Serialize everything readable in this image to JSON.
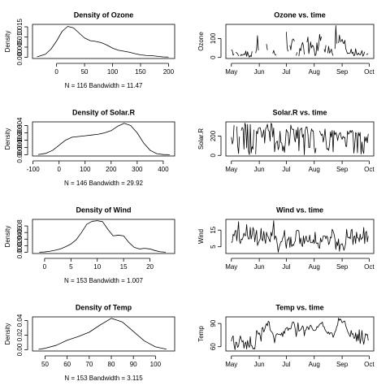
{
  "chart_data": [
    {
      "type": "line",
      "title": "Density of Ozone",
      "xlabel": "N = 116   Bandwidth = 11.47",
      "ylabel": "Density",
      "x": [
        -35,
        -20,
        -10,
        0,
        10,
        20,
        30,
        40,
        50,
        60,
        70,
        80,
        90,
        100,
        110,
        120,
        130,
        140,
        150,
        160,
        170,
        180,
        190,
        200
      ],
      "values": [
        0.0002,
        0.0015,
        0.004,
        0.008,
        0.0128,
        0.0152,
        0.0145,
        0.012,
        0.0095,
        0.0082,
        0.0078,
        0.0072,
        0.006,
        0.0045,
        0.0035,
        0.003,
        0.0025,
        0.0018,
        0.0012,
        0.0009,
        0.0008,
        0.0005,
        0.0002,
        0.0001
      ],
      "xlim": [
        -43,
        211
      ],
      "xticks": [
        0,
        50,
        100,
        150,
        200
      ],
      "ylim": [
        -0.0006,
        0.0162
      ],
      "yticks": [
        {
          "value": 0,
          "label": "0.000"
        },
        {
          "value": 0.005,
          "label": "0.005"
        },
        {
          "value": 0.01,
          "label": "0.010"
        },
        {
          "value": 0.015,
          "label": "0.015"
        }
      ]
    },
    {
      "type": "line",
      "title": "Ozone vs. time",
      "ylabel": "Ozone",
      "values": [
        41,
        36,
        12,
        18,
        null,
        28,
        23,
        19,
        8,
        null,
        7,
        16,
        11,
        14,
        18,
        14,
        34,
        6,
        30,
        11,
        1,
        11,
        4,
        32,
        null,
        null,
        null,
        23,
        45,
        115,
        37,
        null,
        null,
        null,
        null,
        null,
        null,
        29,
        null,
        71,
        39,
        null,
        null,
        23,
        null,
        null,
        21,
        37,
        20,
        12,
        13,
        null,
        null,
        null,
        null,
        null,
        null,
        null,
        null,
        null,
        null,
        135,
        49,
        32,
        null,
        64,
        40,
        77,
        97,
        97,
        85,
        null,
        10,
        27,
        null,
        7,
        48,
        35,
        61,
        79,
        63,
        16,
        null,
        null,
        80,
        108,
        20,
        52,
        82,
        50,
        64,
        59,
        39,
        9,
        16,
        78,
        35,
        66,
        122,
        89,
        110,
        null,
        null,
        44,
        28,
        65,
        null,
        22,
        59,
        23,
        31,
        44,
        21,
        9,
        null,
        45,
        168,
        73,
        null,
        76,
        118,
        84,
        85,
        96,
        78,
        73,
        91,
        47,
        32,
        20,
        23,
        21,
        24,
        44,
        21,
        28,
        9,
        13,
        46,
        18,
        13,
        24,
        16,
        13,
        23,
        36,
        7,
        14,
        30,
        null,
        14,
        18,
        20
      ],
      "xlim": [
        -6.1,
        158.1
      ],
      "xticks": [
        {
          "value": 0,
          "label": "May"
        },
        {
          "value": 31,
          "label": "Jun"
        },
        {
          "value": 61,
          "label": "Jul"
        },
        {
          "value": 92,
          "label": "Aug"
        },
        {
          "value": 123,
          "label": "Sep"
        },
        {
          "value": 153,
          "label": "Oct"
        }
      ],
      "ylim": [
        -5.7,
        174.7
      ],
      "yticks": [
        0,
        100
      ]
    },
    {
      "type": "line",
      "title": "Density of Solar.R",
      "xlabel": "N = 146   Bandwidth = 29.92",
      "ylabel": "Density",
      "x": [
        -80,
        -50,
        -25,
        0,
        25,
        50,
        75,
        100,
        125,
        150,
        175,
        200,
        225,
        250,
        275,
        300,
        325,
        350,
        375,
        400,
        425
      ],
      "values": [
        2e-05,
        0.0002,
        0.0006,
        0.0013,
        0.002,
        0.0024,
        0.0025,
        0.0026,
        0.0027,
        0.0028,
        0.003,
        0.0033,
        0.0039,
        0.0043,
        0.004,
        0.003,
        0.0016,
        0.0006,
        0.00015,
        3e-05,
        1e-05
      ],
      "xlim": [
        -102,
        444
      ],
      "xticks": [
        -100,
        0,
        100,
        200,
        300,
        400
      ],
      "ylim": [
        -0.00017,
        0.0045
      ],
      "yticks": [
        {
          "value": 0,
          "label": "0.000"
        },
        {
          "value": 0.001,
          "label": "0.001"
        },
        {
          "value": 0.002,
          "label": "0.002"
        },
        {
          "value": 0.003,
          "label": "0.003"
        },
        {
          "value": 0.004,
          "label": "0.004"
        }
      ]
    },
    {
      "type": "line",
      "title": "Solar.R vs. time",
      "ylabel": "Solar.R",
      "values": [
        190,
        118,
        149,
        313,
        null,
        null,
        299,
        99,
        19,
        194,
        null,
        256,
        290,
        274,
        65,
        334,
        307,
        78,
        322,
        44,
        8,
        320,
        25,
        92,
        66,
        266,
        null,
        13,
        252,
        223,
        279,
        286,
        287,
        242,
        186,
        220,
        264,
        127,
        273,
        291,
        323,
        259,
        250,
        148,
        332,
        322,
        191,
        284,
        37,
        120,
        137,
        150,
        59,
        91,
        250,
        135,
        127,
        47,
        98,
        31,
        138,
        269,
        248,
        236,
        101,
        175,
        314,
        276,
        267,
        272,
        175,
        139,
        264,
        175,
        291,
        48,
        260,
        274,
        285,
        187,
        220,
        7,
        258,
        295,
        294,
        223,
        81,
        82,
        213,
        275,
        253,
        254,
        83,
        24,
        77,
        null,
        null,
        null,
        255,
        229,
        207,
        222,
        137,
        192,
        273,
        157,
        64,
        71,
        51,
        115,
        244,
        190,
        259,
        36,
        255,
        212,
        238,
        215,
        153,
        203,
        225,
        237,
        188,
        167,
        197,
        183,
        189,
        95,
        92,
        252,
        220,
        230,
        259,
        236,
        259,
        238,
        24,
        112,
        237,
        224,
        27,
        238,
        201,
        238,
        14,
        139,
        49,
        20,
        193,
        145,
        191,
        131,
        223
      ],
      "xlim": [
        -6.1,
        158.1
      ],
      "xticks": [
        {
          "value": 0,
          "label": "May"
        },
        {
          "value": 31,
          "label": "Jun"
        },
        {
          "value": 61,
          "label": "Jul"
        },
        {
          "value": 92,
          "label": "Aug"
        },
        {
          "value": 123,
          "label": "Sep"
        },
        {
          "value": 153,
          "label": "Oct"
        }
      ],
      "ylim": [
        -6,
        347
      ],
      "yticks": [
        0,
        200
      ]
    },
    {
      "type": "line",
      "title": "Density of Wind",
      "xlabel": "N = 153   Bandwidth = 1.007",
      "ylabel": "Density",
      "x": [
        -1,
        0,
        1,
        2,
        3,
        4,
        5,
        6,
        7,
        8,
        9,
        10,
        11,
        12,
        13,
        14,
        15,
        16,
        17,
        18,
        19,
        20,
        21,
        22,
        23
      ],
      "values": [
        0.0003,
        0.001,
        0.003,
        0.006,
        0.01,
        0.017,
        0.025,
        0.038,
        0.06,
        0.085,
        0.094,
        0.096,
        0.093,
        0.07,
        0.05,
        0.052,
        0.05,
        0.03,
        0.015,
        0.01,
        0.012,
        0.01,
        0.005,
        0.0015,
        0.0003
      ],
      "xlim": [
        -2.3,
        24.7
      ],
      "xticks": [
        0,
        5,
        10,
        15,
        20
      ],
      "ylim": [
        -0.0038,
        0.1
      ],
      "yticks": [
        {
          "value": 0,
          "label": "0.00"
        },
        {
          "value": 0.02,
          "label": "0.02"
        },
        {
          "value": 0.04,
          "label": "0.04"
        },
        {
          "value": 0.06,
          "label": "0.06"
        },
        {
          "value": 0.08,
          "label": "0.08"
        }
      ]
    },
    {
      "type": "line",
      "title": "Wind vs. time",
      "ylabel": "Wind",
      "values": [
        7.4,
        8.0,
        12.6,
        11.5,
        14.3,
        14.9,
        8.6,
        13.8,
        20.1,
        8.6,
        6.9,
        9.7,
        9.2,
        10.9,
        13.2,
        11.5,
        12.0,
        18.4,
        11.5,
        9.7,
        9.7,
        16.6,
        9.7,
        12.0,
        16.6,
        14.9,
        8.0,
        12.0,
        14.9,
        5.7,
        7.4,
        8.6,
        9.7,
        16.1,
        9.2,
        8.6,
        14.3,
        9.7,
        6.9,
        13.8,
        11.5,
        10.9,
        9.2,
        8.0,
        13.8,
        11.5,
        14.9,
        20.7,
        9.2,
        11.5,
        10.3,
        6.3,
        1.7,
        4.6,
        6.3,
        8.0,
        8.0,
        10.3,
        11.5,
        14.9,
        8.0,
        4.1,
        9.2,
        9.2,
        10.9,
        4.6,
        10.9,
        5.1,
        6.3,
        5.7,
        7.4,
        8.6,
        14.3,
        14.9,
        14.9,
        14.3,
        6.9,
        10.3,
        6.3,
        5.1,
        11.5,
        6.9,
        9.7,
        11.5,
        8.6,
        8.0,
        8.6,
        12.0,
        7.4,
        7.4,
        7.4,
        9.2,
        6.9,
        13.8,
        7.4,
        6.9,
        7.4,
        4.6,
        4.0,
        10.3,
        8.0,
        8.6,
        11.5,
        11.5,
        11.5,
        9.7,
        11.5,
        10.3,
        6.3,
        7.4,
        10.9,
        10.3,
        15.5,
        14.3,
        12.6,
        9.7,
        3.4,
        8.0,
        5.7,
        9.7,
        2.3,
        6.3,
        6.3,
        6.9,
        5.1,
        2.8,
        4.6,
        7.4,
        15.5,
        10.9,
        10.3,
        10.9,
        9.7,
        14.9,
        15.5,
        6.3,
        10.9,
        11.5,
        6.9,
        13.8,
        10.3,
        10.3,
        8.0,
        12.6,
        9.2,
        10.3,
        10.3,
        16.6,
        6.9,
        13.2,
        14.3,
        8.0,
        11.5
      ],
      "xlim": [
        -6.1,
        158.1
      ],
      "xticks": [
        {
          "value": 0,
          "label": "May"
        },
        {
          "value": 31,
          "label": "Jun"
        },
        {
          "value": 61,
          "label": "Jul"
        },
        {
          "value": 92,
          "label": "Aug"
        },
        {
          "value": 123,
          "label": "Sep"
        },
        {
          "value": 153,
          "label": "Oct"
        }
      ],
      "ylim": [
        0.94,
        21.46
      ],
      "yticks": [
        5,
        15
      ]
    },
    {
      "type": "line",
      "title": "Density of Temp",
      "xlabel": "N = 153   Bandwidth = 3.115",
      "ylabel": "Density",
      "x": [
        47,
        50,
        55,
        60,
        65,
        70,
        75,
        80,
        85,
        90,
        95,
        100,
        105
      ],
      "values": [
        0.0005,
        0.002,
        0.006,
        0.013,
        0.018,
        0.024,
        0.034,
        0.043,
        0.038,
        0.025,
        0.012,
        0.004,
        0.0008
      ],
      "xlim": [
        44.3,
        108.7
      ],
      "xticks": [
        50,
        60,
        70,
        80,
        90,
        100
      ],
      "ylim": [
        -0.0017,
        0.045
      ],
      "yticks": [
        {
          "value": 0,
          "label": "0.00"
        },
        {
          "value": 0.02,
          "label": "0.02"
        },
        {
          "value": 0.04,
          "label": "0.04"
        }
      ]
    },
    {
      "type": "line",
      "title": "Temp vs. time",
      "ylabel": "Temp",
      "values": [
        67,
        72,
        74,
        62,
        56,
        66,
        65,
        59,
        61,
        69,
        74,
        69,
        66,
        68,
        58,
        64,
        66,
        57,
        68,
        62,
        59,
        73,
        61,
        61,
        57,
        58,
        57,
        67,
        81,
        79,
        76,
        78,
        74,
        67,
        84,
        85,
        79,
        82,
        87,
        90,
        87,
        93,
        92,
        82,
        80,
        79,
        77,
        72,
        65,
        73,
        76,
        77,
        76,
        76,
        76,
        75,
        78,
        73,
        80,
        77,
        83,
        84,
        85,
        81,
        84,
        83,
        83,
        88,
        92,
        92,
        89,
        82,
        73,
        81,
        91,
        80,
        81,
        82,
        84,
        87,
        85,
        74,
        81,
        82,
        86,
        85,
        82,
        86,
        88,
        86,
        83,
        81,
        81,
        81,
        82,
        86,
        85,
        87,
        89,
        90,
        90,
        92,
        86,
        86,
        82,
        80,
        79,
        77,
        79,
        76,
        78,
        78,
        77,
        72,
        75,
        79,
        81,
        86,
        88,
        97,
        94,
        96,
        94,
        91,
        92,
        93,
        93,
        87,
        84,
        80,
        78,
        75,
        73,
        81,
        76,
        77,
        71,
        71,
        78,
        67,
        76,
        68,
        82,
        64,
        71,
        81,
        69,
        63,
        70,
        77,
        75,
        76,
        68
      ],
      "xlim": [
        -6.1,
        158.1
      ],
      "xticks": [
        {
          "value": 0,
          "label": "May"
        },
        {
          "value": 31,
          "label": "Jun"
        },
        {
          "value": 61,
          "label": "Jul"
        },
        {
          "value": 92,
          "label": "Aug"
        },
        {
          "value": 123,
          "label": "Sep"
        },
        {
          "value": 153,
          "label": "Oct"
        }
      ],
      "ylim": [
        54.4,
        98.6
      ],
      "yticks": [
        60,
        90
      ]
    }
  ]
}
